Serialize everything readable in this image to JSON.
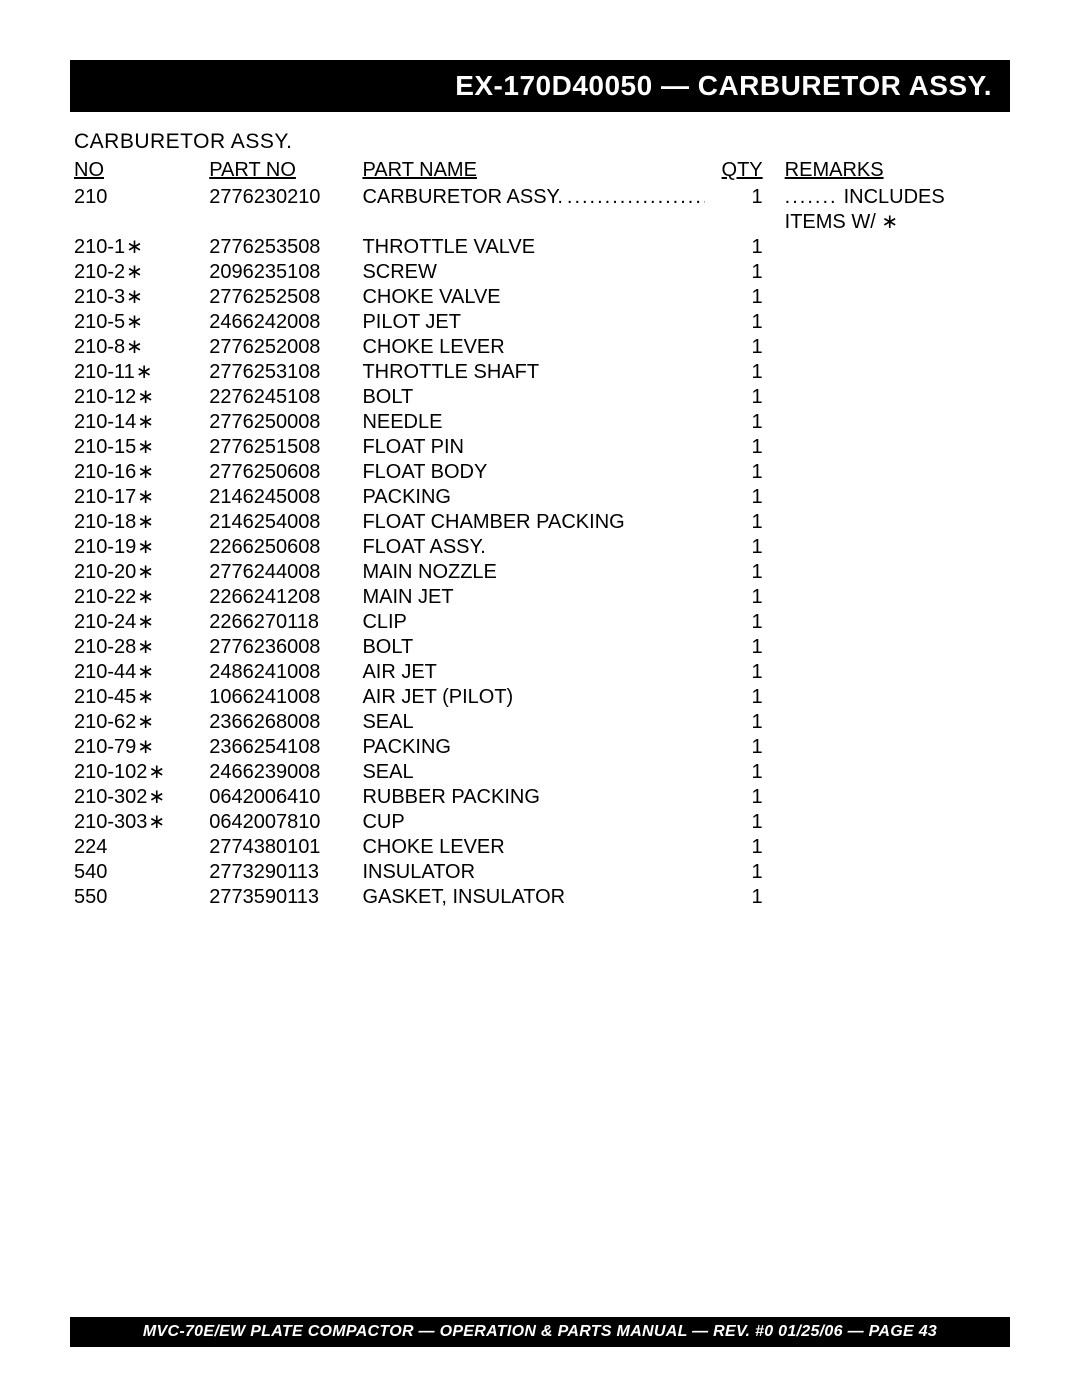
{
  "header": {
    "title": "EX-170D40050 — CARBURETOR ASSY."
  },
  "subtitle": "CARBURETOR  ASSY.",
  "columns": {
    "no": "NO",
    "part_no": "PART NO",
    "part_name": "PART NAME",
    "qty": "QTY",
    "remarks": "REMARKS"
  },
  "rows": [
    {
      "no": "210",
      "star": false,
      "part_no": "2776230210",
      "name": "CARBURETOR ASSY.",
      "qty": "1",
      "remarks": "INCLUDES ITEMS W/ ∗",
      "first": true
    },
    {
      "no": "210-1",
      "star": true,
      "part_no": "2776253508",
      "name": "THROTTLE VALVE",
      "qty": "1",
      "remarks": ""
    },
    {
      "no": "210-2",
      "star": true,
      "part_no": "2096235108",
      "name": "SCREW",
      "qty": "1",
      "remarks": ""
    },
    {
      "no": "210-3",
      "star": true,
      "part_no": "2776252508",
      "name": "CHOKE VALVE",
      "qty": "1",
      "remarks": ""
    },
    {
      "no": "210-5",
      "star": true,
      "part_no": "2466242008",
      "name": "PILOT JET",
      "qty": "1",
      "remarks": ""
    },
    {
      "no": "210-8",
      "star": true,
      "part_no": "2776252008",
      "name": "CHOKE LEVER",
      "qty": "1",
      "remarks": ""
    },
    {
      "no": "210-11",
      "star": true,
      "part_no": "2776253108",
      "name": "THROTTLE SHAFT",
      "qty": "1",
      "remarks": ""
    },
    {
      "no": "210-12",
      "star": true,
      "part_no": "2276245108",
      "name": "BOLT",
      "qty": "1",
      "remarks": ""
    },
    {
      "no": "210-14",
      "star": true,
      "part_no": "2776250008",
      "name": "NEEDLE",
      "qty": "1",
      "remarks": ""
    },
    {
      "no": "210-15",
      "star": true,
      "part_no": "2776251508",
      "name": "FLOAT PIN",
      "qty": "1",
      "remarks": ""
    },
    {
      "no": "210-16",
      "star": true,
      "part_no": "2776250608",
      "name": "FLOAT BODY",
      "qty": "1",
      "remarks": ""
    },
    {
      "no": "210-17",
      "star": true,
      "part_no": "2146245008",
      "name": "PACKING",
      "qty": "1",
      "remarks": ""
    },
    {
      "no": "210-18",
      "star": true,
      "part_no": "2146254008",
      "name": "FLOAT CHAMBER PACKING",
      "qty": "1",
      "remarks": ""
    },
    {
      "no": "210-19",
      "star": true,
      "part_no": "2266250608",
      "name": "FLOAT ASSY.",
      "qty": "1",
      "remarks": ""
    },
    {
      "no": "210-20",
      "star": true,
      "part_no": "2776244008",
      "name": "MAIN NOZZLE",
      "qty": "1",
      "remarks": ""
    },
    {
      "no": "210-22",
      "star": true,
      "part_no": "2266241208",
      "name": "MAIN JET",
      "qty": "1",
      "remarks": ""
    },
    {
      "no": "210-24",
      "star": true,
      "part_no": "2266270118",
      "name": "CLIP",
      "qty": "1",
      "remarks": ""
    },
    {
      "no": "210-28",
      "star": true,
      "part_no": "2776236008",
      "name": "BOLT",
      "qty": "1",
      "remarks": ""
    },
    {
      "no": "210-44",
      "star": true,
      "part_no": "2486241008",
      "name": "AIR JET",
      "qty": "1",
      "remarks": ""
    },
    {
      "no": "210-45",
      "star": true,
      "part_no": "1066241008",
      "name": "AIR JET (PILOT)",
      "qty": "1",
      "remarks": ""
    },
    {
      "no": "210-62",
      "star": true,
      "part_no": "2366268008",
      "name": "SEAL",
      "qty": "1",
      "remarks": ""
    },
    {
      "no": "210-79",
      "star": true,
      "part_no": "2366254108",
      "name": "PACKING",
      "qty": "1",
      "remarks": ""
    },
    {
      "no": "210-102",
      "star": true,
      "part_no": "2466239008",
      "name": "SEAL",
      "qty": "1",
      "remarks": ""
    },
    {
      "no": "210-302",
      "star": true,
      "part_no": "0642006410",
      "name": "RUBBER PACKING",
      "qty": "1",
      "remarks": ""
    },
    {
      "no": "210-303",
      "star": true,
      "part_no": "0642007810",
      "name": "CUP",
      "qty": "1",
      "remarks": ""
    },
    {
      "no": "224",
      "star": false,
      "part_no": "2774380101",
      "name": "CHOKE LEVER",
      "qty": "1",
      "remarks": ""
    },
    {
      "no": "540",
      "star": false,
      "part_no": "2773290113",
      "name": "INSULATOR",
      "qty": "1",
      "remarks": ""
    },
    {
      "no": "550",
      "star": false,
      "part_no": "2773590113",
      "name": "GASKET, INSULATOR",
      "qty": "1",
      "remarks": ""
    }
  ],
  "footer": "MVC-70E/EW PLATE COMPACTOR — OPERATION & PARTS MANUAL — REV. #0  01/25/06 — PAGE 43"
}
